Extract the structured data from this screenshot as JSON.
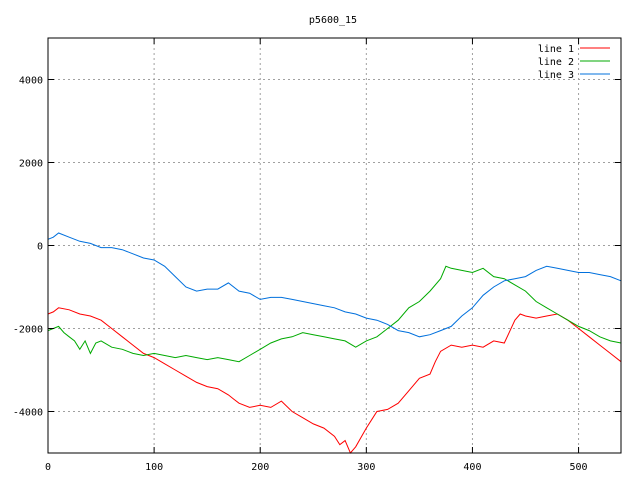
{
  "chart_data": {
    "type": "line",
    "title": "p5600_15",
    "xlabel": "",
    "ylabel": "",
    "xlim": [
      0,
      540
    ],
    "ylim": [
      -5000,
      5000
    ],
    "xticks": [
      0,
      100,
      200,
      300,
      400,
      500
    ],
    "yticks": [
      -4000,
      -2000,
      0,
      2000,
      4000
    ],
    "grid": true,
    "legend_position": "top-right",
    "series": [
      {
        "name": "line 1",
        "color": "#ff0000",
        "points": [
          [
            0,
            -1650
          ],
          [
            5,
            -1600
          ],
          [
            10,
            -1500
          ],
          [
            20,
            -1550
          ],
          [
            30,
            -1650
          ],
          [
            40,
            -1700
          ],
          [
            50,
            -1800
          ],
          [
            60,
            -2000
          ],
          [
            70,
            -2200
          ],
          [
            80,
            -2400
          ],
          [
            90,
            -2600
          ],
          [
            100,
            -2700
          ],
          [
            110,
            -2850
          ],
          [
            120,
            -3000
          ],
          [
            130,
            -3150
          ],
          [
            140,
            -3300
          ],
          [
            150,
            -3400
          ],
          [
            160,
            -3450
          ],
          [
            170,
            -3600
          ],
          [
            175,
            -3700
          ],
          [
            180,
            -3800
          ],
          [
            190,
            -3900
          ],
          [
            200,
            -3850
          ],
          [
            210,
            -3900
          ],
          [
            220,
            -3750
          ],
          [
            230,
            -4000
          ],
          [
            240,
            -4150
          ],
          [
            250,
            -4300
          ],
          [
            260,
            -4400
          ],
          [
            270,
            -4600
          ],
          [
            275,
            -4800
          ],
          [
            280,
            -4700
          ],
          [
            285,
            -5000
          ],
          [
            290,
            -4850
          ],
          [
            300,
            -4400
          ],
          [
            305,
            -4200
          ],
          [
            310,
            -4000
          ],
          [
            320,
            -3950
          ],
          [
            330,
            -3800
          ],
          [
            340,
            -3500
          ],
          [
            350,
            -3200
          ],
          [
            360,
            -3100
          ],
          [
            365,
            -2800
          ],
          [
            370,
            -2550
          ],
          [
            380,
            -2400
          ],
          [
            390,
            -2450
          ],
          [
            400,
            -2400
          ],
          [
            410,
            -2450
          ],
          [
            420,
            -2300
          ],
          [
            430,
            -2350
          ],
          [
            440,
            -1800
          ],
          [
            445,
            -1650
          ],
          [
            450,
            -1700
          ],
          [
            460,
            -1750
          ],
          [
            470,
            -1700
          ],
          [
            480,
            -1650
          ],
          [
            490,
            -1800
          ],
          [
            500,
            -2000
          ],
          [
            510,
            -2200
          ],
          [
            520,
            -2400
          ],
          [
            530,
            -2600
          ],
          [
            540,
            -2800
          ]
        ]
      },
      {
        "name": "line 2",
        "color": "#00aa00",
        "points": [
          [
            0,
            -2050
          ],
          [
            5,
            -2000
          ],
          [
            10,
            -1950
          ],
          [
            15,
            -2100
          ],
          [
            20,
            -2200
          ],
          [
            25,
            -2300
          ],
          [
            30,
            -2500
          ],
          [
            35,
            -2300
          ],
          [
            40,
            -2600
          ],
          [
            45,
            -2350
          ],
          [
            50,
            -2300
          ],
          [
            60,
            -2450
          ],
          [
            70,
            -2500
          ],
          [
            80,
            -2600
          ],
          [
            90,
            -2650
          ],
          [
            100,
            -2600
          ],
          [
            110,
            -2650
          ],
          [
            120,
            -2700
          ],
          [
            130,
            -2650
          ],
          [
            140,
            -2700
          ],
          [
            150,
            -2750
          ],
          [
            160,
            -2700
          ],
          [
            170,
            -2750
          ],
          [
            180,
            -2800
          ],
          [
            190,
            -2650
          ],
          [
            200,
            -2500
          ],
          [
            210,
            -2350
          ],
          [
            220,
            -2250
          ],
          [
            230,
            -2200
          ],
          [
            240,
            -2100
          ],
          [
            250,
            -2150
          ],
          [
            260,
            -2200
          ],
          [
            270,
            -2250
          ],
          [
            280,
            -2300
          ],
          [
            290,
            -2450
          ],
          [
            300,
            -2300
          ],
          [
            310,
            -2200
          ],
          [
            320,
            -2000
          ],
          [
            330,
            -1800
          ],
          [
            340,
            -1500
          ],
          [
            350,
            -1350
          ],
          [
            360,
            -1100
          ],
          [
            370,
            -800
          ],
          [
            375,
            -500
          ],
          [
            380,
            -550
          ],
          [
            390,
            -600
          ],
          [
            400,
            -650
          ],
          [
            410,
            -550
          ],
          [
            420,
            -750
          ],
          [
            430,
            -800
          ],
          [
            440,
            -950
          ],
          [
            450,
            -1100
          ],
          [
            460,
            -1350
          ],
          [
            470,
            -1500
          ],
          [
            480,
            -1650
          ],
          [
            490,
            -1800
          ],
          [
            500,
            -1950
          ],
          [
            510,
            -2050
          ],
          [
            520,
            -2200
          ],
          [
            530,
            -2300
          ],
          [
            540,
            -2350
          ]
        ]
      },
      {
        "name": "line 3",
        "color": "#0070dd",
        "points": [
          [
            0,
            150
          ],
          [
            5,
            200
          ],
          [
            10,
            300
          ],
          [
            20,
            200
          ],
          [
            30,
            100
          ],
          [
            40,
            50
          ],
          [
            50,
            -50
          ],
          [
            60,
            -50
          ],
          [
            70,
            -100
          ],
          [
            80,
            -200
          ],
          [
            90,
            -300
          ],
          [
            100,
            -350
          ],
          [
            110,
            -500
          ],
          [
            120,
            -750
          ],
          [
            130,
            -1000
          ],
          [
            140,
            -1100
          ],
          [
            150,
            -1050
          ],
          [
            160,
            -1050
          ],
          [
            170,
            -900
          ],
          [
            180,
            -1100
          ],
          [
            190,
            -1150
          ],
          [
            200,
            -1300
          ],
          [
            210,
            -1250
          ],
          [
            220,
            -1250
          ],
          [
            230,
            -1300
          ],
          [
            240,
            -1350
          ],
          [
            250,
            -1400
          ],
          [
            260,
            -1450
          ],
          [
            270,
            -1500
          ],
          [
            280,
            -1600
          ],
          [
            290,
            -1650
          ],
          [
            300,
            -1750
          ],
          [
            310,
            -1800
          ],
          [
            320,
            -1900
          ],
          [
            330,
            -2050
          ],
          [
            340,
            -2100
          ],
          [
            350,
            -2200
          ],
          [
            360,
            -2150
          ],
          [
            370,
            -2050
          ],
          [
            380,
            -1950
          ],
          [
            390,
            -1700
          ],
          [
            400,
            -1500
          ],
          [
            410,
            -1200
          ],
          [
            420,
            -1000
          ],
          [
            430,
            -850
          ],
          [
            440,
            -800
          ],
          [
            450,
            -750
          ],
          [
            460,
            -600
          ],
          [
            470,
            -500
          ],
          [
            480,
            -550
          ],
          [
            490,
            -600
          ],
          [
            500,
            -650
          ],
          [
            510,
            -650
          ],
          [
            520,
            -700
          ],
          [
            530,
            -750
          ],
          [
            540,
            -850
          ]
        ]
      }
    ]
  }
}
